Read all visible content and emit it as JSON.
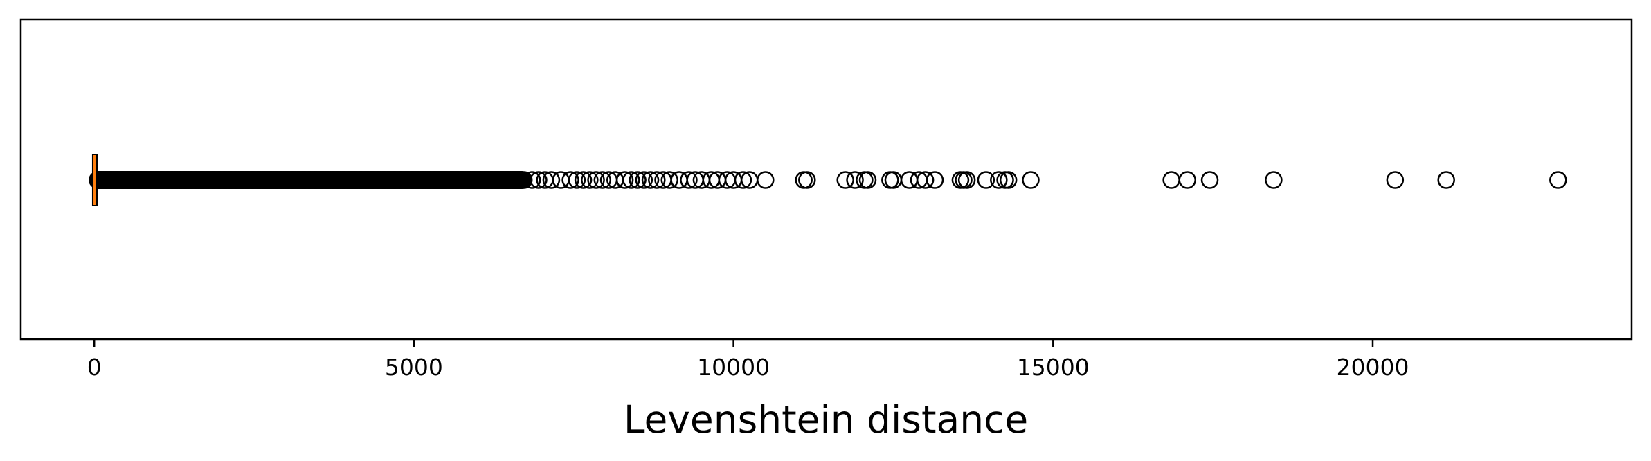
{
  "chart_data": {
    "type": "boxplot",
    "orientation": "horizontal",
    "title": "",
    "xlabel": "Levenshtein distance",
    "ylabel": "",
    "xlim": [
      -1150,
      24050
    ],
    "xticks": [
      0,
      5000,
      10000,
      15000,
      20000
    ],
    "xtick_labels": [
      "0",
      "5000",
      "10000",
      "15000",
      "20000"
    ],
    "grid": false,
    "box": {
      "q1": 0,
      "median": 5,
      "q3": 20,
      "whisker_low": 0,
      "whisker_high": 45
    },
    "median_color": "#ff7f0e",
    "outlier_color": "#000000",
    "dense_outliers": {
      "from": 50,
      "to": 6700,
      "step": 4
    },
    "outliers": [
      5750,
      6000,
      6150,
      6300,
      6450,
      6600,
      6720,
      6850,
      6950,
      7050,
      7150,
      7300,
      7450,
      7550,
      7650,
      7750,
      7850,
      7950,
      8050,
      8150,
      8300,
      8400,
      8500,
      8600,
      8700,
      8800,
      8900,
      9000,
      9150,
      9300,
      9400,
      9500,
      9650,
      9750,
      9900,
      10000,
      10150,
      10250,
      10500,
      11100,
      11150,
      11750,
      11900,
      12050,
      12100,
      12450,
      12500,
      12750,
      12900,
      13000,
      13150,
      13550,
      13600,
      13650,
      13950,
      14150,
      14250,
      14300,
      14650,
      16850,
      17100,
      17450,
      18450,
      20350,
      21150,
      22900
    ]
  }
}
